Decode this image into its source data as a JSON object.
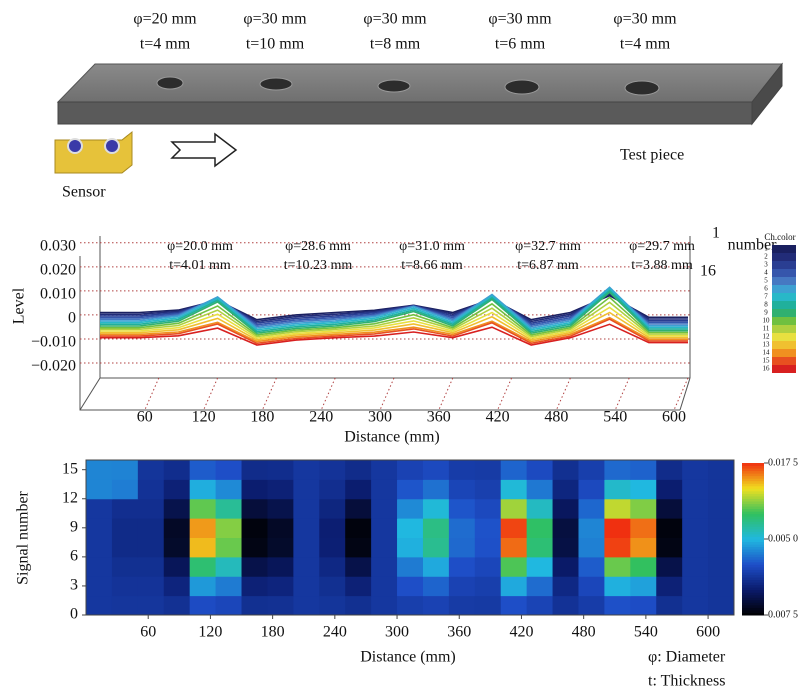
{
  "diagram": {
    "holes": [
      {
        "diameter": "φ=20 mm",
        "thickness": "t=4 mm"
      },
      {
        "diameter": "φ=30 mm",
        "thickness": "t=10 mm"
      },
      {
        "diameter": "φ=30 mm",
        "thickness": "t=8 mm"
      },
      {
        "diameter": "φ=30 mm",
        "thickness": "t=6 mm"
      },
      {
        "diameter": "φ=30 mm",
        "thickness": "t=4 mm"
      }
    ],
    "test_piece": "Test piece",
    "sensor": "Sensor"
  },
  "chart_data": [
    {
      "type": "line",
      "ylabel": "Level",
      "xlabel": "Distance (mm)",
      "legend_title": "Ch.color",
      "depth_labels": [
        "1",
        "number",
        "16"
      ],
      "annotations": [
        [
          "φ=20.0 mm",
          "t=4.01 mm"
        ],
        [
          "φ=28.6 mm",
          "t=10.23 mm"
        ],
        [
          "φ=31.0 mm",
          "t=8.66 mm"
        ],
        [
          "φ=32.7 mm",
          "t=6.87 mm"
        ],
        [
          "φ=29.7 mm",
          "t=3.88 mm"
        ]
      ],
      "xlim": [
        0,
        600
      ],
      "xticks": [
        60,
        120,
        180,
        240,
        300,
        360,
        420,
        480,
        540,
        600
      ],
      "ylim": [
        -0.025,
        0.032
      ],
      "yticks": [
        {
          "value": 0.03,
          "label": "0.030"
        },
        {
          "value": 0.02,
          "label": "0.020"
        },
        {
          "value": 0.01,
          "label": "0.010"
        },
        0,
        {
          "value": -0.01,
          "label": "−0.010"
        },
        {
          "value": -0.02,
          "label": "−0.020"
        }
      ],
      "grid": true,
      "x": [
        0,
        40,
        80,
        120,
        160,
        200,
        240,
        280,
        320,
        360,
        400,
        440,
        480,
        520,
        560,
        600
      ],
      "series": [
        {
          "name": "1",
          "color": "#1a2060",
          "values": [
            0.001,
            0.001,
            0.002,
            0.006,
            -0.002,
            0,
            0.001,
            0.0019,
            0.004,
            0.001,
            0.0065,
            -0.002,
            0.001,
            0.008,
            -0.001,
            -0.001
          ]
        },
        {
          "name": "2",
          "color": "#222c78",
          "values": [
            0.0003,
            0.0003,
            0.0015,
            0.0063,
            -0.0027,
            -0.0007,
            0.0003,
            0.0014,
            0.0039,
            0.0003,
            0.0069,
            -0.0027,
            0.0003,
            0.0087,
            -0.0017,
            -0.0017
          ]
        },
        {
          "name": "3",
          "color": "#2a3e92",
          "values": [
            -0.0004,
            -0.0004,
            0.001,
            0.0066,
            -0.0034,
            -0.0014,
            -0.0004,
            0.0009,
            0.0038,
            -0.0004,
            0.0073,
            -0.0034,
            -0.0004,
            0.0094,
            -0.0024,
            -0.0024
          ]
        },
        {
          "name": "4",
          "color": "#3656ac",
          "values": [
            -0.0011,
            -0.0011,
            0.0005,
            0.0069,
            -0.0041,
            -0.0021,
            -0.0011,
            0.0003,
            0.0037,
            -0.0011,
            0.0077,
            -0.0041,
            -0.0011,
            0.0101,
            -0.0031,
            -0.0031
          ]
        },
        {
          "name": "5",
          "color": "#4678c2",
          "values": [
            -0.0018,
            -0.0018,
            0,
            0.0072,
            -0.0048,
            -0.0028,
            -0.0018,
            -0.0002,
            0.0036,
            -0.0018,
            0.0081,
            -0.0048,
            -0.0018,
            0.0108,
            -0.0038,
            -0.0038
          ]
        },
        {
          "name": "6",
          "color": "#3ea0d2",
          "values": [
            -0.0025,
            -0.0025,
            -0.0005,
            0.0075,
            -0.0055,
            -0.0035,
            -0.0025,
            -0.0007,
            0.0035,
            -0.0025,
            0.0085,
            -0.0055,
            -0.0025,
            0.0115,
            -0.0045,
            -0.0045
          ]
        },
        {
          "name": "7",
          "color": "#28b8c8",
          "values": [
            -0.0032,
            -0.0032,
            -0.0012,
            0.0068,
            -0.0062,
            -0.0042,
            -0.0032,
            -0.0014,
            0.0028,
            -0.0032,
            0.0078,
            -0.0062,
            -0.0032,
            0.0108,
            -0.0052,
            -0.0052
          ]
        },
        {
          "name": "8",
          "color": "#20b09c",
          "values": [
            -0.0039,
            -0.0039,
            -0.0019,
            0.0061,
            -0.0069,
            -0.0049,
            -0.0039,
            -0.0021,
            0.0021,
            -0.0039,
            0.0071,
            -0.0069,
            -0.0039,
            0.0101,
            -0.0059,
            -0.0059
          ]
        },
        {
          "name": "9",
          "color": "#30b070",
          "values": [
            -0.0046,
            -0.0046,
            -0.0026,
            0.0054,
            -0.0076,
            -0.0056,
            -0.0046,
            -0.0028,
            0.0014,
            -0.0046,
            0.0064,
            -0.0076,
            -0.0046,
            0.0094,
            -0.0066,
            -0.0066
          ]
        },
        {
          "name": "10",
          "color": "#70c040",
          "values": [
            -0.0053,
            -0.0053,
            -0.0035,
            0.0037,
            -0.0083,
            -0.0063,
            -0.0053,
            -0.0037,
            0.0001,
            -0.0053,
            0.0046,
            -0.0083,
            -0.0053,
            0.0073,
            -0.0073,
            -0.0073
          ]
        },
        {
          "name": "11",
          "color": "#b0d040",
          "values": [
            -0.006,
            -0.006,
            -0.0044,
            0.002,
            -0.009,
            -0.007,
            -0.006,
            -0.0046,
            -0.0012,
            -0.006,
            0.0028,
            -0.009,
            -0.006,
            0.0052,
            -0.008,
            -0.008
          ]
        },
        {
          "name": "12",
          "color": "#e8e040",
          "values": [
            -0.0067,
            -0.0067,
            -0.0053,
            0.0003,
            -0.0097,
            -0.0077,
            -0.0067,
            -0.0054,
            -0.0025,
            -0.0067,
            0.001,
            -0.0097,
            -0.0067,
            0.0031,
            -0.0087,
            -0.0087
          ]
        },
        {
          "name": "13",
          "color": "#f0c030",
          "values": [
            -0.0074,
            -0.0074,
            -0.0062,
            -0.0014,
            -0.0104,
            -0.0084,
            -0.0074,
            -0.0063,
            -0.0038,
            -0.0074,
            -0.0008,
            -0.0104,
            -0.0074,
            0.001,
            -0.0094,
            -0.0094
          ]
        },
        {
          "name": "14",
          "color": "#f09020",
          "values": [
            -0.0081,
            -0.0081,
            -0.0071,
            -0.0031,
            -0.0111,
            -0.0091,
            -0.0081,
            -0.0072,
            -0.0051,
            -0.0081,
            -0.0026,
            -0.0111,
            -0.0081,
            -0.0011,
            -0.0101,
            -0.0101
          ]
        },
        {
          "name": "15",
          "color": "#e85020",
          "values": [
            -0.0088,
            -0.0088,
            -0.0078,
            -0.0038,
            -0.0118,
            -0.0098,
            -0.0088,
            -0.0079,
            -0.0058,
            -0.0088,
            -0.0033,
            -0.0118,
            -0.0088,
            -0.0018,
            -0.0108,
            -0.0108
          ]
        },
        {
          "name": "16",
          "color": "#d82020",
          "values": [
            -0.0095,
            -0.0095,
            -0.0087,
            -0.0055,
            -0.0125,
            -0.0105,
            -0.0095,
            -0.0088,
            -0.0071,
            -0.0095,
            -0.0051,
            -0.0125,
            -0.0095,
            -0.0039,
            -0.0115,
            -0.0115
          ]
        }
      ]
    },
    {
      "type": "heatmap",
      "ylabel": "Signal number",
      "xlabel": "Distance (mm)",
      "xlim": [
        0,
        625
      ],
      "xticks": [
        60,
        120,
        180,
        240,
        300,
        360,
        420,
        480,
        540,
        600
      ],
      "ylim": [
        0,
        16
      ],
      "yticks": [
        0,
        3,
        6,
        9,
        12,
        15
      ],
      "xbins": [
        0,
        25,
        50,
        75,
        100,
        125,
        150,
        175,
        200,
        225,
        250,
        275,
        300,
        325,
        350,
        375,
        400,
        425,
        450,
        475,
        500,
        525,
        550,
        575,
        600,
        625
      ],
      "ybins": [
        0,
        2,
        4,
        6,
        8,
        10,
        12,
        14,
        16
      ],
      "zlim": [
        -0.0075,
        0.0175
      ],
      "zticks": [
        {
          "value": 0.0175,
          "label": "0.017 5"
        },
        {
          "value": 0.005,
          "label": "0.005 0"
        },
        {
          "value": -0.0075,
          "label": "0.007 5"
        }
      ],
      "colorscale": [
        "#000000",
        "#0a1a6a",
        "#1e4ec8",
        "#20b8e0",
        "#30c060",
        "#f0e020",
        "#f03010"
      ],
      "z": [
        [
          -0.001,
          -0.0011,
          -0.0011,
          -0.0015,
          0.0006,
          0.0002,
          -0.0016,
          -0.0015,
          -0.001,
          -0.0012,
          -0.0016,
          -0.001,
          -0.0004,
          -0.0001,
          -0.0007,
          -0.0008,
          0.0008,
          0,
          -0.0014,
          -0.0006,
          0.0009,
          0.0007,
          -0.0016,
          -0.001,
          -0.0012
        ],
        [
          -0.001,
          -0.0013,
          -0.0013,
          -0.0025,
          0.0038,
          0.0026,
          -0.0028,
          -0.0025,
          -0.001,
          -0.0016,
          -0.0028,
          -0.001,
          0.0008,
          0.0017,
          -0.0001,
          -0.0004,
          0.0044,
          0.002,
          -0.0022,
          0.0002,
          0.0047,
          0.0041,
          -0.0028,
          -0.001,
          -0.0012
        ],
        [
          -0.001,
          -0.0016,
          -0.0016,
          -0.004,
          0.0086,
          0.0062,
          -0.0046,
          -0.004,
          -0.001,
          -0.0022,
          -0.0046,
          -0.001,
          0.0026,
          0.0044,
          0.0008,
          0.0002,
          0.0098,
          0.005,
          -0.0034,
          0.0014,
          0.0104,
          0.0092,
          -0.0046,
          -0.001,
          -0.0012
        ],
        [
          -0.001,
          -0.002,
          -0.002,
          -0.0058,
          0.0142,
          0.0104,
          -0.0067,
          -0.0058,
          -0.001,
          -0.0029,
          -0.0067,
          -0.001,
          0.0047,
          0.0076,
          0.0019,
          0.0009,
          0.0161,
          0.0085,
          -0.0048,
          0.0028,
          0.0171,
          0.0152,
          -0.0067,
          -0.001,
          -0.0012
        ],
        [
          -0.001,
          -0.002,
          -0.002,
          -0.006,
          0.015,
          0.011,
          -0.007,
          -0.006,
          -0.001,
          -0.003,
          -0.007,
          -0.001,
          0.005,
          0.008,
          0.002,
          0.001,
          0.017,
          0.009,
          -0.005,
          0.003,
          0.018,
          0.016,
          -0.007,
          -0.001,
          -0.0012
        ],
        [
          -0.001,
          -0.0017,
          -0.0017,
          -0.0045,
          0.0102,
          0.0074,
          -0.0052,
          -0.0045,
          -0.001,
          -0.0024,
          -0.0052,
          -0.001,
          0.0032,
          0.0053,
          0.0011,
          0.0004,
          0.0116,
          0.006,
          -0.0038,
          0.0018,
          0.0123,
          0.0109,
          -0.0052,
          -0.001,
          -0.0012
        ],
        [
          0.003,
          0.0027,
          -0.0014,
          -0.0028,
          0.0046,
          0.0032,
          -0.0031,
          -0.0028,
          -0.001,
          -0.0017,
          -0.0031,
          -0.001,
          0.0011,
          0.0022,
          0.0001,
          -0.0003,
          0.0053,
          0.0025,
          -0.0024,
          0.0004,
          0.0057,
          0.005,
          -0.0031,
          -0.001,
          -0.0012
        ],
        [
          0.003,
          0.0029,
          -0.0012,
          -0.0018,
          0.0014,
          0.0008,
          -0.0019,
          -0.0018,
          -0.001,
          -0.0013,
          -0.0019,
          -0.001,
          -0.0001,
          0.0004,
          -0.0006,
          -0.0007,
          0.0017,
          0.0005,
          -0.0016,
          -0.0004,
          0.0019,
          0.0016,
          -0.0019,
          -0.001,
          -0.0012
        ]
      ]
    }
  ],
  "notes": {
    "diameter": "φ: Diameter",
    "thickness": "t: Thickness"
  }
}
